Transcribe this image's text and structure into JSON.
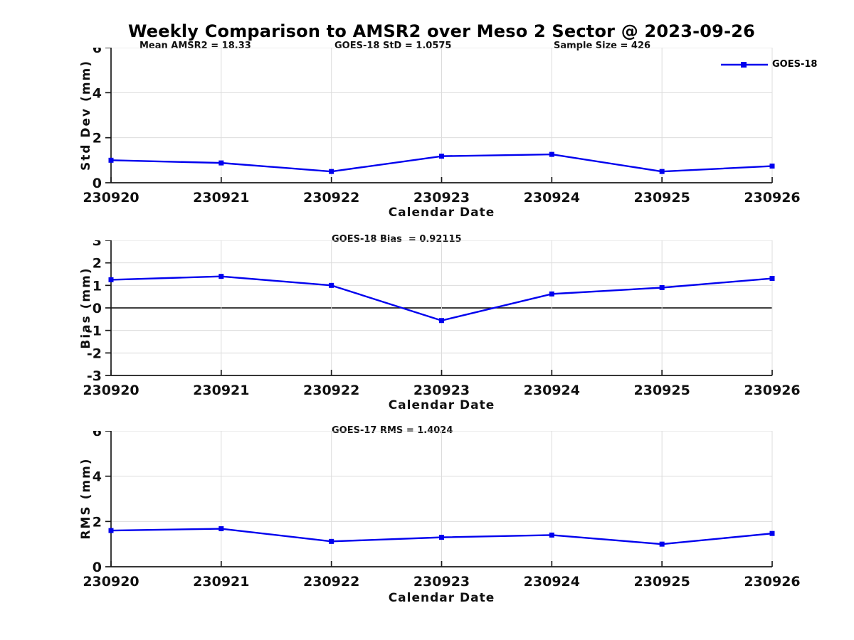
{
  "title": "Weekly Comparison to AMSR2 over Meso 2 Sector @ 2023-09-26",
  "colors": {
    "line": "#0000EE",
    "grid": "#dcdcdc",
    "axis": "#1a1a1a",
    "zero_line": "#000000",
    "background": "#ffffff"
  },
  "legend": {
    "label": "GOES-18"
  },
  "chart_data": [
    {
      "type": "line",
      "id": "std-dev",
      "annotations": [
        "Mean AMSR2 = 18.33",
        "GOES-18 StD = 1.0575",
        "Sample Size = 426"
      ],
      "categories": [
        "230920",
        "230921",
        "230922",
        "230923",
        "230924",
        "230925",
        "230926"
      ],
      "series": [
        {
          "name": "GOES-18",
          "color": "#0000EE",
          "marker": "square",
          "values": [
            1.0,
            0.88,
            0.5,
            1.18,
            1.26,
            0.5,
            0.74
          ]
        }
      ],
      "xlabel": "Calendar Date",
      "ylabel": "Std Dev (mm)",
      "ylim": [
        0,
        6
      ],
      "yticks": [
        0,
        2,
        4,
        6
      ],
      "grid": true,
      "zero_line": false,
      "legend_position": "top-right"
    },
    {
      "type": "line",
      "id": "bias",
      "annotations": [
        "GOES-18 Bias  = 0.92115"
      ],
      "categories": [
        "230920",
        "230921",
        "230922",
        "230923",
        "230924",
        "230925",
        "230926"
      ],
      "series": [
        {
          "name": "GOES-18",
          "color": "#0000EE",
          "marker": "square",
          "values": [
            1.25,
            1.4,
            1.0,
            -0.56,
            0.62,
            0.9,
            1.31
          ]
        }
      ],
      "xlabel": "Calendar Date",
      "ylabel": "Bias (mm)",
      "ylim": [
        -3,
        3
      ],
      "yticks": [
        -3,
        -2,
        -1,
        0,
        1,
        2,
        3
      ],
      "grid": true,
      "zero_line": true,
      "legend_position": "none"
    },
    {
      "type": "line",
      "id": "rms",
      "annotations": [
        "GOES-17 RMS = 1.4024"
      ],
      "categories": [
        "230920",
        "230921",
        "230922",
        "230923",
        "230924",
        "230925",
        "230926"
      ],
      "series": [
        {
          "name": "GOES-18",
          "color": "#0000EE",
          "marker": "square",
          "values": [
            1.6,
            1.68,
            1.12,
            1.3,
            1.4,
            1.0,
            1.47
          ]
        }
      ],
      "xlabel": "Calendar Date",
      "ylabel": "RMS (mm)",
      "ylim": [
        0,
        6
      ],
      "yticks": [
        0,
        2,
        4,
        6
      ],
      "grid": true,
      "zero_line": false,
      "legend_position": "none"
    }
  ]
}
